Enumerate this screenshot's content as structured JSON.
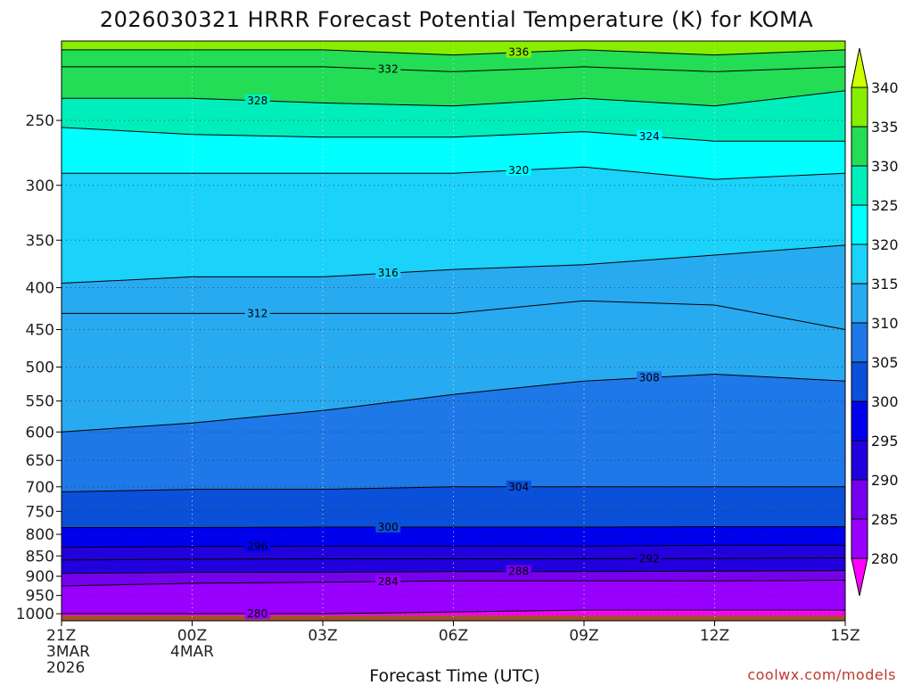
{
  "chart_data": {
    "type": "heatmap",
    "title": "2026030321 HRRR Forecast Potential Temperature (K) for KOMA",
    "xlabel": "Forecast Time (UTC)",
    "ylabel": "",
    "credit": "coolwx.com/models",
    "y_axis": {
      "scale": "log-pressure",
      "ticks": [
        250,
        300,
        350,
        400,
        450,
        500,
        550,
        600,
        650,
        700,
        750,
        800,
        850,
        900,
        950,
        1000
      ],
      "range_hPa": [
        1020,
        200
      ],
      "grid": "dotted"
    },
    "x_axis": {
      "range_hours": [
        0,
        18
      ],
      "ticks": [
        {
          "hour": 0,
          "label": "21Z",
          "sub": [
            "3MAR",
            "2026"
          ]
        },
        {
          "hour": 3,
          "label": "00Z",
          "sub": [
            "4MAR"
          ]
        },
        {
          "hour": 6,
          "label": "03Z",
          "sub": []
        },
        {
          "hour": 9,
          "label": "06Z",
          "sub": []
        },
        {
          "hour": 12,
          "label": "09Z",
          "sub": []
        },
        {
          "hour": 15,
          "label": "12Z",
          "sub": []
        },
        {
          "hour": 18,
          "label": "15Z",
          "sub": []
        }
      ],
      "grid": "dotted"
    },
    "colorbar": {
      "levels": [
        280,
        285,
        290,
        295,
        300,
        305,
        310,
        315,
        320,
        325,
        330,
        335,
        340
      ],
      "colors": [
        "#ff00ff",
        "#9900ff",
        "#7700ee",
        "#2200dd",
        "#0000ee",
        "#0a50d8",
        "#1e78e8",
        "#28aaf0",
        "#1ad2fa",
        "#00ffff",
        "#00eebb",
        "#22dd55",
        "#88ee00",
        "#ccff00"
      ],
      "extend": "both"
    },
    "ground_color": "#a0522d",
    "isentropes": [
      {
        "theta": 280,
        "p": [
          1000,
          1000,
          1000,
          995,
          990,
          990,
          990
        ],
        "label": "280"
      },
      {
        "theta": 284,
        "p": [
          925,
          918,
          915,
          912,
          912,
          912,
          910
        ],
        "label": "284"
      },
      {
        "theta": 288,
        "p": [
          893,
          890,
          890,
          888,
          888,
          887,
          886
        ],
        "label": "288"
      },
      {
        "theta": 292,
        "p": [
          860,
          858,
          857,
          857,
          857,
          856,
          855
        ],
        "label": "292"
      },
      {
        "theta": 296,
        "p": [
          830,
          828,
          827,
          827,
          827,
          825,
          825
        ],
        "label": "296"
      },
      {
        "theta": 300,
        "p": [
          785,
          785,
          784,
          784,
          784,
          783,
          783
        ],
        "label": "300"
      },
      {
        "theta": 304,
        "p": [
          710,
          705,
          705,
          700,
          700,
          700,
          700
        ],
        "label": "304"
      },
      {
        "theta": 308,
        "p": [
          600,
          585,
          565,
          540,
          520,
          510,
          520
        ],
        "label": "308"
      },
      {
        "theta": 312,
        "p": [
          430,
          430,
          430,
          430,
          415,
          420,
          450
        ],
        "label": "312"
      },
      {
        "theta": 316,
        "p": [
          395,
          388,
          388,
          380,
          375,
          365,
          355
        ],
        "label": "316"
      },
      {
        "theta": 320,
        "p": [
          290,
          290,
          290,
          290,
          285,
          295,
          290
        ],
        "label": "320"
      },
      {
        "theta": 324,
        "p": [
          255,
          260,
          262,
          262,
          258,
          265,
          265
        ],
        "label": "324"
      },
      {
        "theta": 328,
        "p": [
          235,
          235,
          238,
          240,
          235,
          240,
          230
        ],
        "label": "328"
      },
      {
        "theta": 332,
        "p": [
          215,
          215,
          215,
          218,
          215,
          218,
          215
        ],
        "label": "332"
      },
      {
        "theta": 336,
        "p": [
          205,
          205,
          205,
          208,
          205,
          208,
          205
        ],
        "label": "336"
      }
    ]
  }
}
